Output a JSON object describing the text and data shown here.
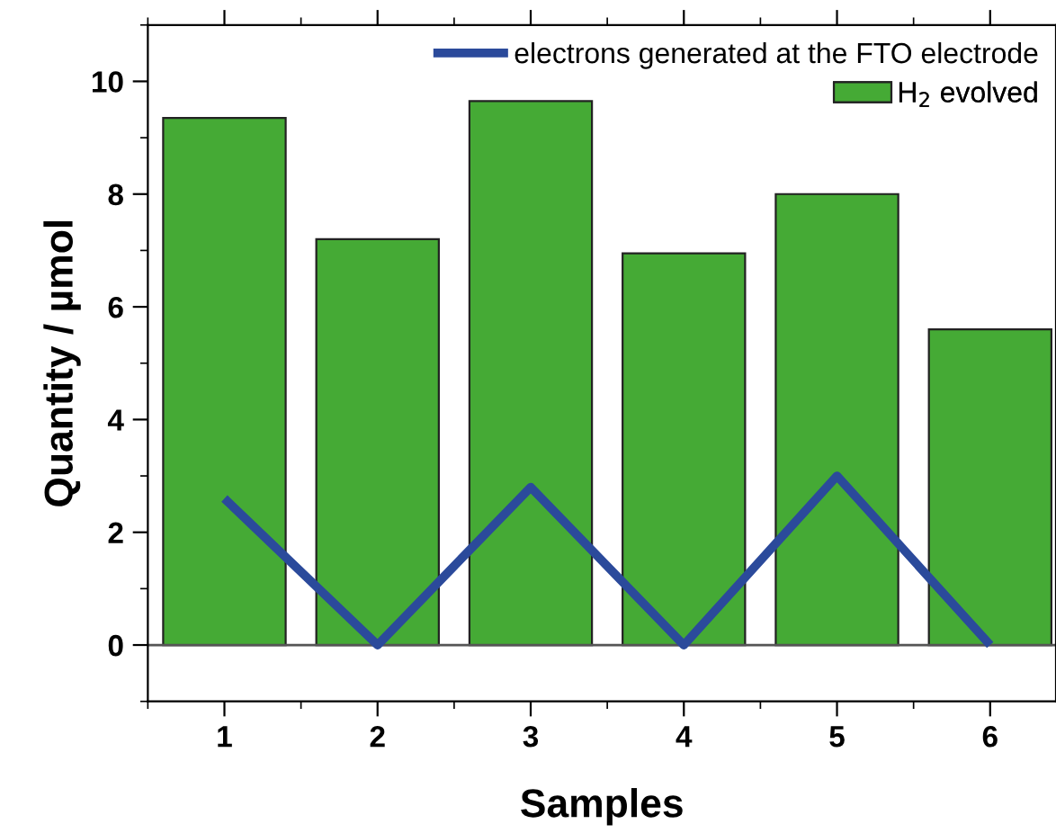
{
  "chart_data": {
    "type": "bar",
    "xlabel": "Samples",
    "ylabel": "Quantity / µmol",
    "x": [
      1,
      2,
      3,
      4,
      5,
      6
    ],
    "series": [
      {
        "name": "electrons generated at the FTO electrode",
        "type": "line",
        "color": "#2b4a9b",
        "values": [
          2.6,
          0,
          2.8,
          0,
          3.0,
          0
        ]
      },
      {
        "name": "H$_{2}$ evolved",
        "color": "#45aa35",
        "values": [
          9.35,
          7.2,
          9.65,
          6.95,
          8.0,
          5.6
        ]
      }
    ],
    "xlim": [
      0.5,
      6.43
    ],
    "xticks": [
      1,
      2,
      3,
      4,
      5,
      6
    ],
    "ylim": [
      -1,
      11
    ],
    "yticks": [
      0,
      2,
      4,
      6,
      8,
      10
    ],
    "ref_lines": [
      {
        "axis": "y",
        "value": 0,
        "color": "#555555"
      }
    ],
    "grid": false,
    "legend": "top right"
  }
}
